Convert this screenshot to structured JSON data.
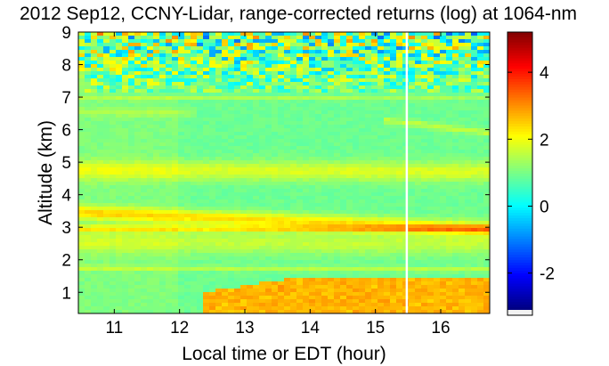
{
  "chart_data": {
    "type": "heatmap",
    "title": "2012 Sep12, CCNY-Lidar, range-corrected returns (log) at 1064-nm",
    "xlabel": "Local time or EDT (hour)",
    "ylabel": "Altitude (km)",
    "xlim": [
      10.45,
      16.75
    ],
    "ylim": [
      0.35,
      9.0
    ],
    "x_ticks": [
      "11",
      "12",
      "13",
      "14",
      "15",
      "16"
    ],
    "x_tick_values": [
      11,
      12,
      13,
      14,
      15,
      16
    ],
    "y_ticks": [
      "1",
      "2",
      "3",
      "4",
      "5",
      "6",
      "7",
      "8",
      "9"
    ],
    "y_tick_values": [
      1,
      2,
      3,
      4,
      5,
      6,
      7,
      8,
      9
    ],
    "colorbar": {
      "range": [
        -3.1,
        5.2
      ],
      "ticks": [
        "-2",
        "0",
        "2",
        "4"
      ],
      "tick_values": [
        -2,
        0,
        2,
        4
      ]
    },
    "grid": false,
    "background_level": 0.9,
    "layers": [
      {
        "alt_start": 3.45,
        "alt_end": 2.95,
        "time_start": 10.45,
        "time_end": 16.75,
        "thickness": 0.22,
        "value": 2.3
      },
      {
        "alt_start": 4.75,
        "alt_end": 4.7,
        "time_start": 10.45,
        "time_end": 16.75,
        "thickness": 0.3,
        "value": 1.8
      },
      {
        "alt_start": 2.95,
        "alt_end": 2.95,
        "time_start": 10.45,
        "time_end": 16.75,
        "thickness": 0.1,
        "value": 2.0
      },
      {
        "alt_start": 2.55,
        "alt_end": 2.5,
        "time_start": 10.45,
        "time_end": 16.75,
        "thickness": 0.35,
        "value": 1.6
      },
      {
        "alt_start": 1.75,
        "alt_end": 1.7,
        "time_start": 10.45,
        "time_end": 16.75,
        "thickness": 0.08,
        "value": 1.5
      },
      {
        "alt_start": 6.95,
        "alt_end": 7.0,
        "time_start": 10.45,
        "time_end": 16.75,
        "thickness": 0.06,
        "value": 1.4
      },
      {
        "alt_start": 6.55,
        "alt_end": 6.5,
        "time_start": 10.45,
        "time_end": 12.3,
        "thickness": 0.12,
        "value": 1.3
      },
      {
        "alt_start": 6.3,
        "alt_end": 5.9,
        "time_start": 15.1,
        "time_end": 16.75,
        "thickness": 0.1,
        "value": 1.6
      }
    ],
    "boundary_layer": {
      "time_start": 12.35,
      "time_end": 16.75,
      "top_start": 1.0,
      "top_end": 1.45,
      "value": 2.7
    },
    "noisy_region_above_alt": 7.1,
    "data_gap_time": 15.48
  }
}
